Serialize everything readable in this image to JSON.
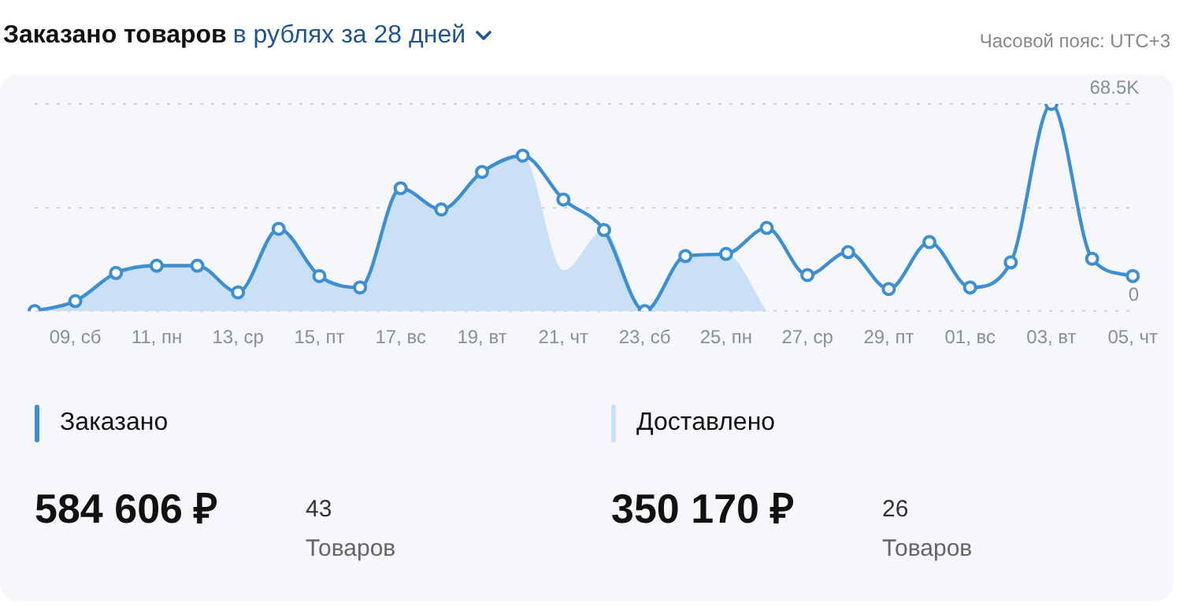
{
  "chart_data": {
    "type": "line",
    "title": "Заказано товаров",
    "subtitle": "в рублях за 28 дней",
    "categories": [
      null,
      "09, сб",
      null,
      "11, пн",
      null,
      "13, ср",
      null,
      "15, пт",
      null,
      "17, вс",
      null,
      "19, вт",
      null,
      "21, чт",
      null,
      "23, сб",
      null,
      "25, пн",
      null,
      "27, ср",
      null,
      "29, пт",
      null,
      "01, вс",
      null,
      "03, вт",
      null,
      "05, чт"
    ],
    "series": [
      {
        "name": "Заказано",
        "marker": "circle",
        "color": "#3d8fd1",
        "values": [
          0,
          3300,
          12600,
          15000,
          15000,
          6200,
          27200,
          11600,
          7800,
          40600,
          33600,
          46000,
          51400,
          36900,
          26800,
          0,
          18200,
          18900,
          27500,
          11900,
          19500,
          7300,
          22800,
          7800,
          16100,
          68500,
          17300,
          11600
        ]
      },
      {
        "name": "Доставлено",
        "type": "area",
        "marker": "none",
        "color": "#c9e0f6",
        "values": [
          0,
          3300,
          12600,
          15000,
          15000,
          6200,
          27200,
          11600,
          7800,
          40600,
          33600,
          46000,
          51400,
          13500,
          26800,
          0,
          18200,
          18900,
          0,
          null,
          null,
          null,
          null,
          null,
          null,
          null,
          null,
          null
        ]
      }
    ],
    "ylim": [
      0,
      68500
    ],
    "yticks": [
      0,
      {
        "value": 34250,
        "label": null
      },
      {
        "value": 68500,
        "label": "68.5K"
      }
    ],
    "grid": "y",
    "legend": "bottom",
    "annotations": [
      "Часовой пояс: UTC+3",
      "584 606 ₽",
      "43",
      "Товаров",
      "350 170 ₽",
      "26",
      "Товаров"
    ]
  }
}
